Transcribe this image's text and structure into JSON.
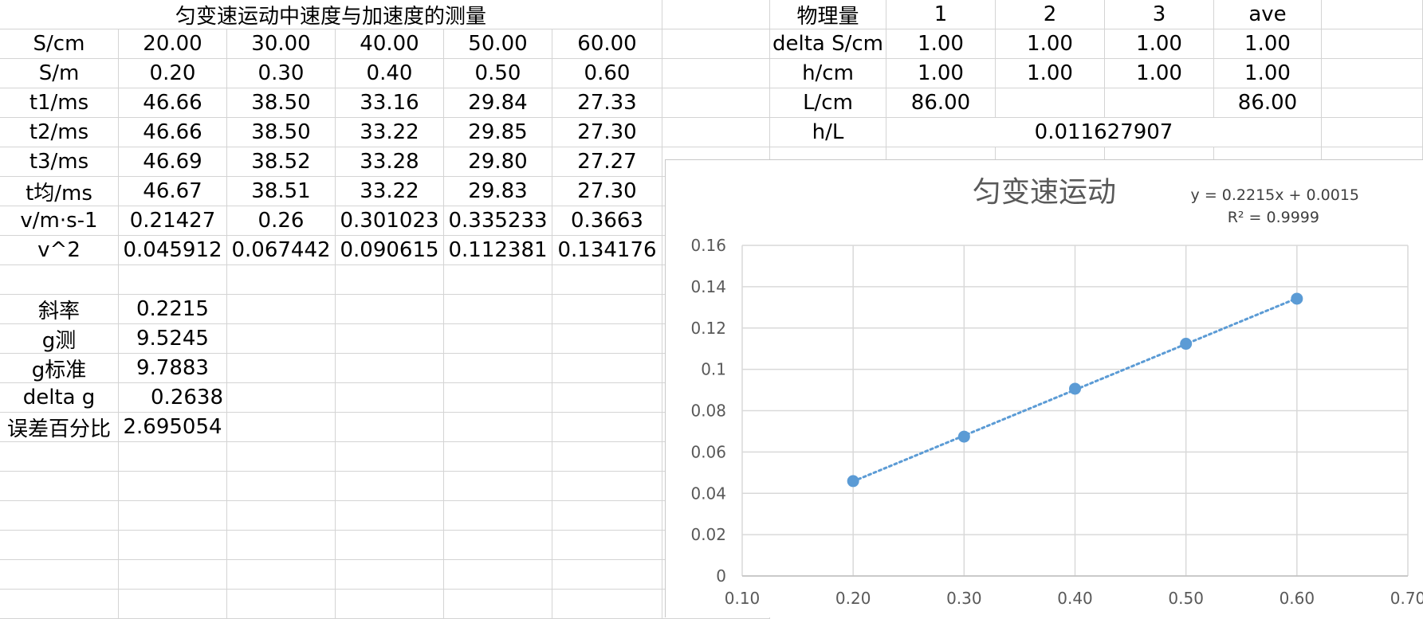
{
  "left_table": {
    "title": "匀变速运动中速度与加速度的测量",
    "rows": [
      {
        "label": "S/cm",
        "cells": [
          "20.00",
          "30.00",
          "40.00",
          "50.00",
          "60.00"
        ]
      },
      {
        "label": "S/m",
        "cells": [
          "0.20",
          "0.30",
          "0.40",
          "0.50",
          "0.60"
        ]
      },
      {
        "label": "t1/ms",
        "cells": [
          "46.66",
          "38.50",
          "33.16",
          "29.84",
          "27.33"
        ]
      },
      {
        "label": "t2/ms",
        "cells": [
          "46.66",
          "38.50",
          "33.22",
          "29.85",
          "27.30"
        ]
      },
      {
        "label": "t3/ms",
        "cells": [
          "46.69",
          "38.52",
          "33.28",
          "29.80",
          "27.27"
        ]
      },
      {
        "label": "t均/ms",
        "cells": [
          "46.67",
          "38.51",
          "33.22",
          "29.83",
          "27.30"
        ]
      },
      {
        "label": "v/m·s-1",
        "cells": [
          "0.21427",
          "0.26",
          "0.301023",
          "0.335233",
          "0.3663"
        ]
      },
      {
        "label": "v^2",
        "cells": [
          "0.045912",
          "0.067442",
          "0.090615",
          "0.112381",
          "0.134176"
        ]
      }
    ],
    "results": [
      {
        "label": "斜率",
        "value": "0.2215"
      },
      {
        "label": "g测",
        "value": "9.5245"
      },
      {
        "label": "g标准",
        "value": "9.7883"
      },
      {
        "label": "delta g",
        "value": "0.2638"
      },
      {
        "label": "误差百分比",
        "value": "2.695054"
      }
    ]
  },
  "right_table": {
    "header": [
      "物理量",
      "1",
      "2",
      "3",
      "ave"
    ],
    "rows": [
      {
        "label": "delta S/cm",
        "cells": [
          "1.00",
          "1.00",
          "1.00",
          "1.00"
        ]
      },
      {
        "label": "h/cm",
        "cells": [
          "1.00",
          "1.00",
          "1.00",
          "1.00"
        ]
      },
      {
        "label": "L/cm",
        "cells": [
          "86.00",
          "",
          "",
          "86.00"
        ]
      }
    ],
    "hl_label": "h/L",
    "hl_value": "0.011627907"
  },
  "chart_data": {
    "type": "scatter",
    "title": "匀变速运动",
    "trendline_equation": "y = 0.2215x + 0.0015",
    "r_squared": "R² = 0.9999",
    "x": [
      0.2,
      0.3,
      0.4,
      0.5,
      0.6
    ],
    "y": [
      0.045912,
      0.067442,
      0.090615,
      0.112381,
      0.134176
    ],
    "xlim": [
      0.1,
      0.7
    ],
    "ylim": [
      0,
      0.16
    ],
    "x_ticks": [
      "0.10",
      "0.20",
      "0.30",
      "0.40",
      "0.50",
      "0.60",
      "0.70"
    ],
    "y_ticks": [
      "0",
      "0.02",
      "0.04",
      "0.06",
      "0.08",
      "0.1",
      "0.12",
      "0.14",
      "0.16"
    ],
    "grid": true,
    "trendline": {
      "style": "dotted",
      "slope": 0.2215,
      "intercept": 0.0015
    },
    "colors": {
      "marker": "#5b9bd5",
      "grid": "#d9d9d9",
      "text": "#595959"
    }
  }
}
